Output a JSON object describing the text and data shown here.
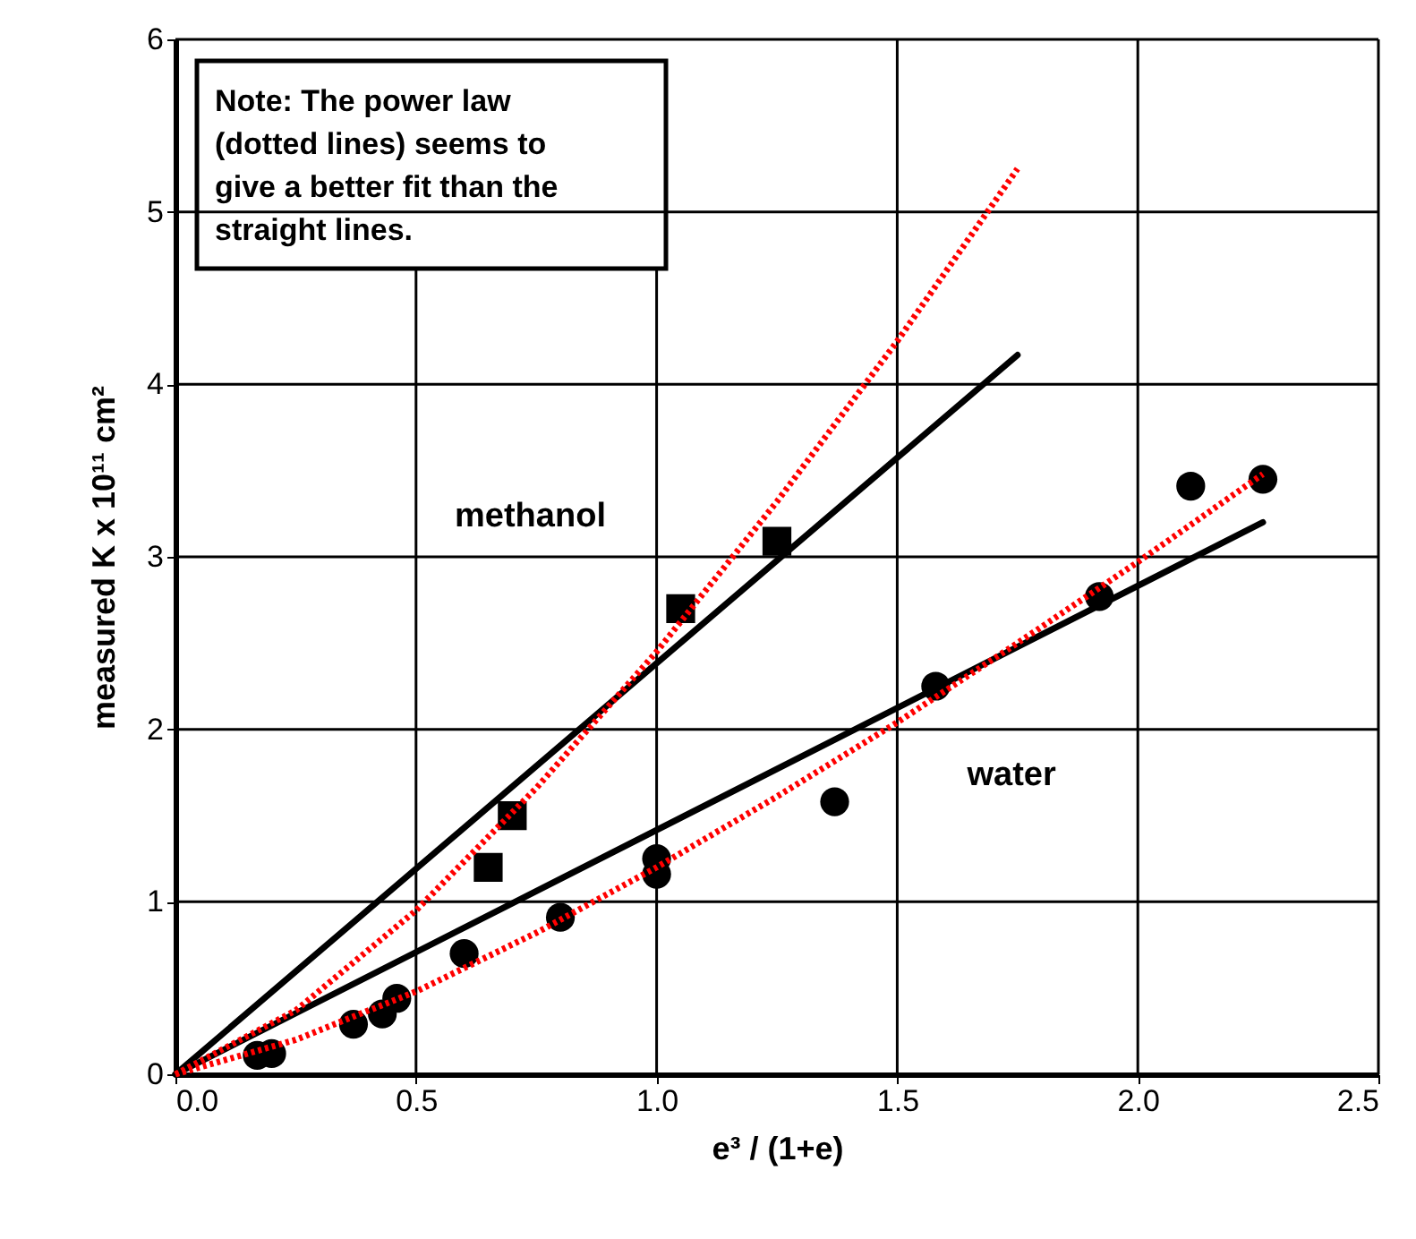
{
  "chart_data": {
    "type": "scatter",
    "xlabel": "e³ / (1+e)",
    "ylabel": "measured K x 10¹¹ cm²",
    "xlim": [
      0,
      2.5
    ],
    "ylim": [
      0,
      6
    ],
    "xticks": [
      {
        "value": 0,
        "label": "0.0"
      },
      {
        "value": 0.5,
        "label": "0.5"
      },
      {
        "value": 1,
        "label": "1.0"
      },
      {
        "value": 1.5,
        "label": "1.5"
      },
      {
        "value": 2,
        "label": "2.0"
      },
      {
        "value": 2.5,
        "label": "2.5"
      }
    ],
    "yticks": [
      0,
      1,
      2,
      3,
      4,
      5,
      6
    ],
    "grid": true,
    "series": [
      {
        "marker": "square",
        "color": "#000000",
        "x": [
          0.65,
          0.7,
          1.05,
          1.25
        ],
        "values": [
          1.2,
          1.5,
          2.7,
          3.09
        ]
      },
      {
        "marker": "circle",
        "color": "#000000",
        "x": [
          0.17,
          0.2,
          0.37,
          0.43,
          0.46,
          0.6,
          0.8,
          1.0,
          1.0,
          1.37,
          1.58,
          1.92,
          2.11,
          2.26
        ],
        "values": [
          0.11,
          0.12,
          0.29,
          0.35,
          0.44,
          0.7,
          0.91,
          1.25,
          1.16,
          1.58,
          2.25,
          2.77,
          3.41,
          3.45
        ]
      },
      {
        "type": "line",
        "line_style": "solid",
        "color": "#000000",
        "x": [
          0,
          1.75
        ],
        "values": [
          0,
          4.17
        ]
      },
      {
        "type": "line",
        "line_style": "solid",
        "color": "#000000",
        "x": [
          0,
          2.26
        ],
        "values": [
          0,
          3.2
        ]
      },
      {
        "type": "line",
        "line_style": "dotted",
        "color": "#ff0000",
        "x": [
          0,
          0.25,
          0.5,
          0.75,
          1.0,
          1.25,
          1.5,
          1.75
        ],
        "values": [
          0,
          0.37,
          0.95,
          1.66,
          2.45,
          3.32,
          4.25,
          5.25
        ]
      },
      {
        "type": "line",
        "line_style": "dotted",
        "color": "#ff0000",
        "x": [
          0,
          0.25,
          0.5,
          0.75,
          1.0,
          1.25,
          1.5,
          1.75,
          2.0,
          2.26
        ],
        "values": [
          0,
          0.2,
          0.48,
          0.82,
          1.2,
          1.61,
          2.04,
          2.5,
          2.97,
          3.48
        ]
      }
    ],
    "annotations": [
      "Note: The power law\n(dotted lines) seems to\ngive a better fit than the\nstraight lines.",
      "methanol",
      "water"
    ]
  }
}
